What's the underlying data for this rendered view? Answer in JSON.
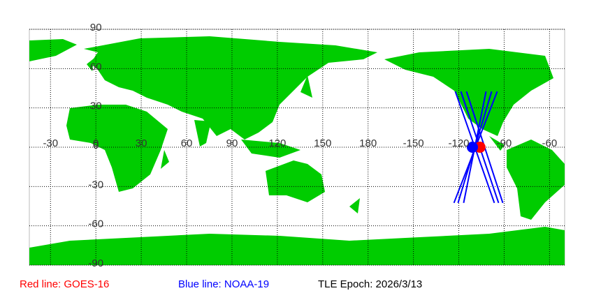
{
  "chart_data": {
    "type": "groundtrack",
    "xlim": [
      -44,
      310
    ],
    "ylim": [
      -90,
      90
    ],
    "xticks": [
      -30,
      0,
      30,
      60,
      90,
      120,
      150,
      180,
      {
        "value": 210,
        "label": "-150"
      },
      {
        "value": 240,
        "label": "-120"
      },
      {
        "value": 270,
        "label": "-90"
      },
      {
        "value": 300,
        "label": "-60"
      }
    ],
    "yticks": [
      -90,
      -60,
      -30,
      0,
      30,
      60,
      90
    ],
    "grid": true,
    "series": [
      {
        "name": "Red line: GOES-16",
        "color": "#ff0000",
        "tracks": [],
        "position": [
          254,
          0
        ]
      },
      {
        "name": "Blue line: NOAA-19",
        "color": "#0000ff",
        "tracks": [
          [
            [
              237.7,
              42.5
            ],
            [
              263.5,
              -42.5
            ]
          ],
          [
            [
              241.4,
              42.5
            ],
            [
              266.3,
              -42.5
            ]
          ],
          [
            [
              245.1,
              42.5
            ],
            [
              269.1,
              -42.5
            ]
          ],
          [
            [
              265.4,
              42.5
            ],
            [
              236.8,
              -42.5
            ]
          ],
          [
            [
              261.7,
              42.5
            ],
            [
              239.5,
              -42.5
            ]
          ],
          [
            [
              258.0,
              42.5
            ],
            [
              243.2,
              -42.5
            ]
          ]
        ],
        "position": [
          249,
          0
        ]
      }
    ],
    "epoch": "TLE Epoch: 2026/3/13"
  }
}
